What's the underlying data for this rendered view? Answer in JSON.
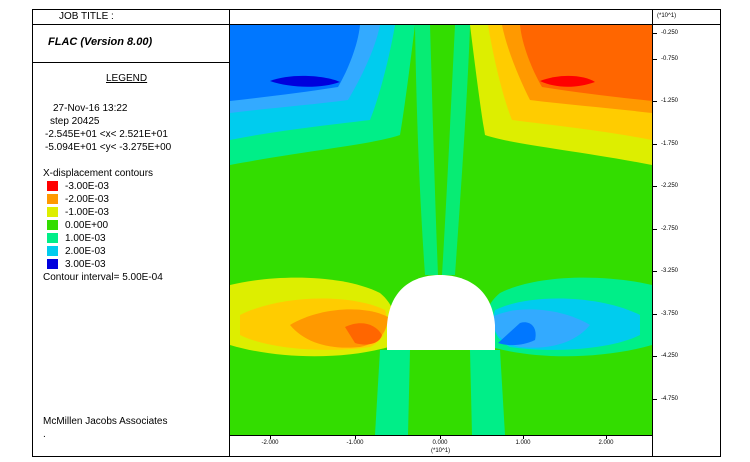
{
  "header": {
    "job_title": "JOB TITLE :",
    "y_scale": "(*10^1)"
  },
  "program": {
    "name": "FLAC (Version 8.00)"
  },
  "legend": {
    "title": "LEGEND",
    "date_time": "27-Nov-16  13:22",
    "step": "step    20425",
    "x_range": "-2.545E+01 <x<  2.521E+01",
    "y_range": "-5.094E+01 <y< -3.275E+00",
    "contour_title": "X-displacement contours",
    "contours": [
      {
        "label": "-3.00E-03",
        "color": "#ff0000"
      },
      {
        "label": "-2.00E-03",
        "color": "#ff9900"
      },
      {
        "label": "-1.00E-03",
        "color": "#ddee00"
      },
      {
        "label": "0.00E+00",
        "color": "#33dd00"
      },
      {
        "label": "1.00E-03",
        "color": "#00ee88"
      },
      {
        "label": "2.00E-03",
        "color": "#00ccee"
      },
      {
        "label": "3.00E-03",
        "color": "#0000dd"
      }
    ],
    "interval": "Contour interval=  5.00E-04",
    "company": "McMillen Jacobs Associates",
    "dot": "."
  },
  "y_axis": {
    "ticks": [
      "-0.250",
      "-0.750",
      "-1.250",
      "-1.750",
      "-2.250",
      "-2.750",
      "-3.250",
      "-3.750",
      "-4.250",
      "-4.750"
    ]
  },
  "x_axis": {
    "ticks": [
      "-2.000",
      "-1.000",
      "0.000",
      "1.000",
      "2.000"
    ],
    "scale": "(*10^1)"
  }
}
